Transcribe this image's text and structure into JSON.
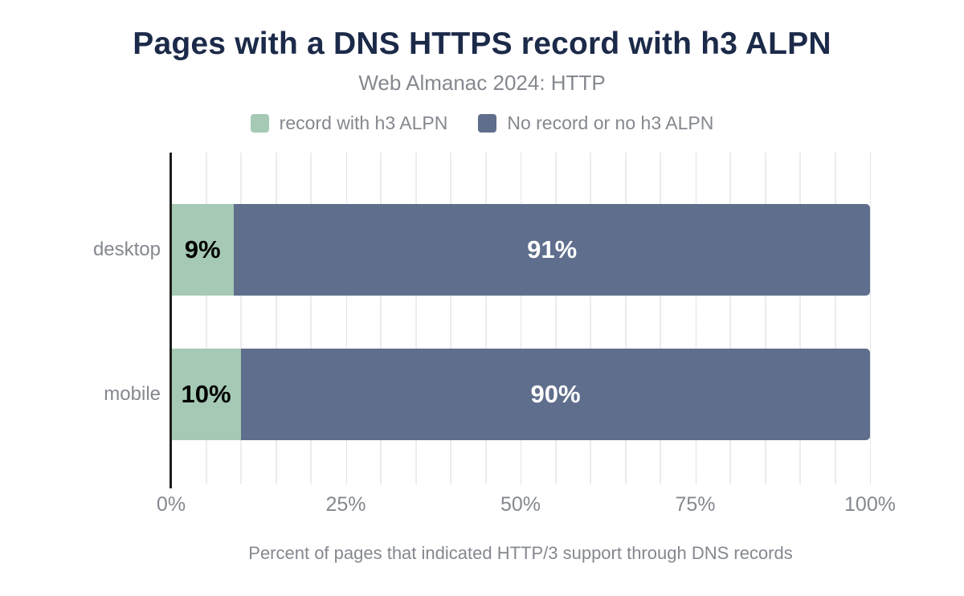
{
  "title": "Pages with a DNS HTTPS record with h3 ALPN",
  "subtitle": "Web Almanac 2024: HTTP",
  "caption": "Percent of pages that indicated HTTP/3 support through DNS records",
  "colors": {
    "title": "#1c2a49",
    "muted_text": "#84888f",
    "axis_line": "#1d1d1d",
    "gridline_minor": "#ececec",
    "gridline_major": "#c8ccd0",
    "series_green": "#a5c9b4",
    "series_blue": "#5f6e8c",
    "label_on_green": "#000000",
    "label_on_blue": "#ffffff"
  },
  "legend": [
    {
      "label": "record with h3 ALPN",
      "color": "#a5c9b4"
    },
    {
      "label": "No record or no h3 ALPN",
      "color": "#5f6e8c"
    }
  ],
  "chart_data": {
    "type": "bar",
    "orientation": "horizontal",
    "stacked": true,
    "title": "Pages with a DNS HTTPS record with h3 ALPN",
    "subtitle": "Web Almanac 2024: HTTP",
    "xlabel": "Percent of pages that indicated HTTP/3 support through DNS records",
    "ylabel": "",
    "categories": [
      "desktop",
      "mobile"
    ],
    "series": [
      {
        "name": "record with h3 ALPN",
        "values": [
          9,
          10
        ],
        "labels": [
          "9%",
          "10%"
        ],
        "color": "#a5c9b4",
        "label_color": "#000000"
      },
      {
        "name": "No record or no h3 ALPN",
        "values": [
          91,
          90
        ],
        "labels": [
          "91%",
          "90%"
        ],
        "color": "#5f6e8c",
        "label_color": "#ffffff"
      }
    ],
    "xlim": [
      0,
      100
    ],
    "x_tick_values": [
      0,
      25,
      50,
      75,
      100
    ],
    "x_tick_labels": [
      "0%",
      "25%",
      "50%",
      "75%",
      "100%"
    ],
    "minor_grid_step": 5,
    "major_grid_step": 25,
    "grid": true,
    "legend_position": "top"
  }
}
